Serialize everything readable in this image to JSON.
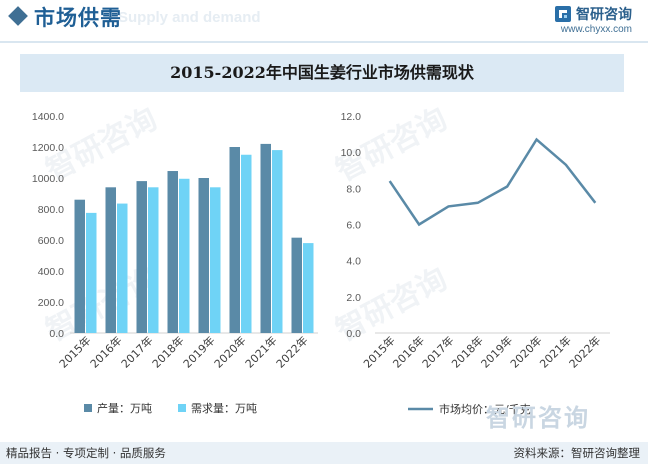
{
  "header": {
    "title": "市场供需",
    "ghost_text": "Supply and demand",
    "brand_name": "智研咨询",
    "brand_url": "www.chyxx.com"
  },
  "watermark": "智研咨询",
  "footer": {
    "left": "精品报告 · 专项定制 · 品质服务",
    "right": "资料来源：智研咨询整理"
  },
  "colors": {
    "production": "#5a8aa7",
    "demand": "#6fd3f6",
    "price_line": "#5a8aa7",
    "title_bg": "#dbe9f4",
    "accent": "#1f5f95"
  },
  "chart_data": [
    {
      "type": "bar",
      "title": "2015-2022年中国生姜行业市场供需现状",
      "categories": [
        "2015年",
        "2016年",
        "2017年",
        "2018年",
        "2019年",
        "2020年",
        "2021年",
        "2022年"
      ],
      "series": [
        {
          "name": "产量：万吨",
          "values": [
            860,
            940,
            980,
            1045,
            1000,
            1200,
            1220,
            615
          ]
        },
        {
          "name": "需求量：万吨",
          "values": [
            775,
            835,
            940,
            995,
            940,
            1150,
            1180,
            580
          ]
        }
      ],
      "yticks": [
        "0.0",
        "200.0",
        "400.0",
        "600.0",
        "800.0",
        "1000.0",
        "1200.0",
        "1400.0"
      ],
      "ylim": [
        0,
        1400
      ],
      "legend_position": "bottom"
    },
    {
      "type": "line",
      "categories": [
        "2015年",
        "2016年",
        "2017年",
        "2018年",
        "2019年",
        "2020年",
        "2021年",
        "2022年"
      ],
      "series": [
        {
          "name": "市场均价：元/千克",
          "values": [
            8.4,
            6.0,
            7.0,
            7.2,
            8.1,
            10.7,
            9.3,
            7.2
          ]
        }
      ],
      "yticks": [
        "0.0",
        "2.0",
        "4.0",
        "6.0",
        "8.0",
        "10.0",
        "12.0"
      ],
      "ylim": [
        0,
        12
      ],
      "legend_position": "bottom"
    }
  ]
}
